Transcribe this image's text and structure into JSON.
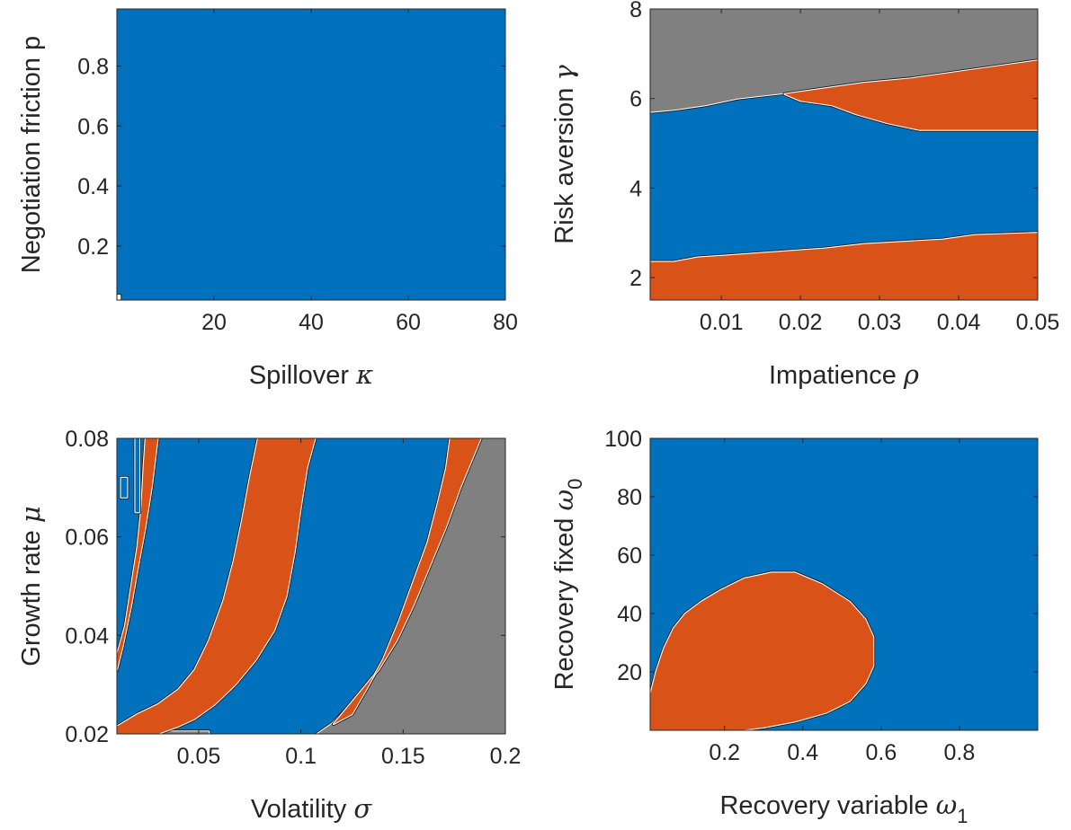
{
  "chart_data": [
    {
      "type": "heatmap",
      "xlabel": "Spillover",
      "xsym": "κ",
      "ylabel": "Negotiation friction p",
      "ysym": "",
      "xlim": [
        0,
        80
      ],
      "ylim": [
        0.02,
        0.99
      ],
      "xticks": [
        20,
        40,
        60,
        80
      ],
      "xticklabels": [
        "20",
        "40",
        "60",
        "80"
      ],
      "yticks": [
        0.2,
        0.4,
        0.6,
        0.8
      ],
      "yticklabels": [
        "0.2",
        "0.4",
        "0.6",
        "0.8"
      ],
      "background": "blue",
      "regions": [
        {
          "color": "white",
          "points": [
            [
              0,
              0.02
            ],
            [
              0.6,
              0.02
            ],
            [
              0.6,
              0.035
            ],
            [
              0,
              0.035
            ]
          ]
        }
      ]
    },
    {
      "type": "heatmap",
      "xlabel": "Impatience",
      "xsym": "ρ",
      "ylabel": "Risk aversion",
      "ysym": "γ",
      "xlim": [
        0.001,
        0.05
      ],
      "ylim": [
        1.5,
        8
      ],
      "xticks": [
        0.01,
        0.02,
        0.03,
        0.04,
        0.05
      ],
      "xticklabels": [
        "0.01",
        "0.02",
        "0.03",
        "0.04",
        "0.05"
      ],
      "yticks": [
        2,
        4,
        6,
        8
      ],
      "yticklabels": [
        "2",
        "4",
        "6",
        "8"
      ],
      "background": "blue",
      "regions": [
        {
          "color": "gray",
          "points": [
            [
              0.001,
              5.7
            ],
            [
              0.004,
              5.75
            ],
            [
              0.008,
              5.85
            ],
            [
              0.012,
              6.0
            ],
            [
              0.017,
              6.1
            ],
            [
              0.022,
              6.2
            ],
            [
              0.028,
              6.35
            ],
            [
              0.034,
              6.45
            ],
            [
              0.04,
              6.6
            ],
            [
              0.046,
              6.75
            ],
            [
              0.05,
              6.85
            ],
            [
              0.05,
              8
            ],
            [
              0.001,
              8
            ]
          ]
        },
        {
          "color": "orange",
          "points": [
            [
              0.018,
              6.1
            ],
            [
              0.022,
              6.2
            ],
            [
              0.028,
              6.35
            ],
            [
              0.034,
              6.45
            ],
            [
              0.04,
              6.6
            ],
            [
              0.046,
              6.75
            ],
            [
              0.05,
              6.85
            ],
            [
              0.05,
              5.3
            ],
            [
              0.045,
              5.3
            ],
            [
              0.04,
              5.3
            ],
            [
              0.035,
              5.3
            ],
            [
              0.031,
              5.45
            ],
            [
              0.027,
              5.65
            ],
            [
              0.024,
              5.85
            ],
            [
              0.02,
              5.95
            ]
          ]
        },
        {
          "color": "orange",
          "points": [
            [
              0.001,
              1.5
            ],
            [
              0.001,
              2.35
            ],
            [
              0.004,
              2.35
            ],
            [
              0.007,
              2.45
            ],
            [
              0.011,
              2.5
            ],
            [
              0.015,
              2.55
            ],
            [
              0.019,
              2.6
            ],
            [
              0.023,
              2.65
            ],
            [
              0.028,
              2.75
            ],
            [
              0.033,
              2.8
            ],
            [
              0.038,
              2.85
            ],
            [
              0.042,
              2.95
            ],
            [
              0.05,
              3.0
            ],
            [
              0.05,
              1.5
            ]
          ]
        }
      ]
    },
    {
      "type": "heatmap",
      "xlabel": "Volatility",
      "xsym": "σ",
      "ylabel": "Growth rate",
      "ysym": "μ",
      "xlim": [
        0.01,
        0.2
      ],
      "ylim": [
        0.02,
        0.08
      ],
      "xticks": [
        0.05,
        0.1,
        0.15,
        0.2
      ],
      "xticklabels": [
        "0.05",
        "0.1",
        "0.15",
        "0.2"
      ],
      "yticks": [
        0.02,
        0.04,
        0.06,
        0.08
      ],
      "yticklabels": [
        "0.02",
        "0.04",
        "0.06",
        "0.08"
      ],
      "background": "blue",
      "regions": [
        {
          "color": "gray",
          "points": [
            [
              0.188,
              0.08
            ],
            [
              0.2,
              0.08
            ],
            [
              0.2,
              0.02
            ],
            [
              0.108,
              0.02
            ],
            [
              0.115,
              0.022
            ],
            [
              0.122,
              0.025
            ],
            [
              0.13,
              0.029
            ],
            [
              0.138,
              0.033
            ],
            [
              0.147,
              0.039
            ],
            [
              0.155,
              0.046
            ],
            [
              0.163,
              0.054
            ],
            [
              0.171,
              0.062
            ],
            [
              0.178,
              0.07
            ],
            [
              0.184,
              0.076
            ]
          ]
        },
        {
          "color": "orange",
          "points": [
            [
              0.173,
              0.08
            ],
            [
              0.188,
              0.08
            ],
            [
              0.184,
              0.076
            ],
            [
              0.178,
              0.07
            ],
            [
              0.171,
              0.062
            ],
            [
              0.163,
              0.054
            ],
            [
              0.155,
              0.046
            ],
            [
              0.147,
              0.039
            ],
            [
              0.138,
              0.033
            ],
            [
              0.13,
              0.029
            ],
            [
              0.122,
              0.025
            ],
            [
              0.116,
              0.022
            ],
            [
              0.125,
              0.024
            ],
            [
              0.132,
              0.029
            ],
            [
              0.14,
              0.035
            ],
            [
              0.148,
              0.043
            ],
            [
              0.155,
              0.051
            ],
            [
              0.162,
              0.059
            ],
            [
              0.167,
              0.067
            ],
            [
              0.171,
              0.074
            ]
          ]
        },
        {
          "color": "gray",
          "points": [
            [
              0.01,
              0.02
            ],
            [
              0.01,
              0.0205
            ],
            [
              0.055,
              0.0205
            ],
            [
              0.055,
              0.02
            ]
          ]
        },
        {
          "color": "orange",
          "points": [
            [
              0.079,
              0.08
            ],
            [
              0.107,
              0.08
            ],
            [
              0.103,
              0.074
            ],
            [
              0.1,
              0.066
            ],
            [
              0.097,
              0.057
            ],
            [
              0.093,
              0.048
            ],
            [
              0.087,
              0.041
            ],
            [
              0.078,
              0.035
            ],
            [
              0.068,
              0.03
            ],
            [
              0.058,
              0.026
            ],
            [
              0.048,
              0.023
            ],
            [
              0.04,
              0.0215
            ],
            [
              0.03,
              0.02
            ],
            [
              0.01,
              0.02
            ],
            [
              0.01,
              0.0215
            ],
            [
              0.02,
              0.024
            ],
            [
              0.03,
              0.026
            ],
            [
              0.04,
              0.029
            ],
            [
              0.048,
              0.033
            ],
            [
              0.055,
              0.039
            ],
            [
              0.062,
              0.047
            ],
            [
              0.067,
              0.055
            ],
            [
              0.071,
              0.063
            ],
            [
              0.075,
              0.072
            ]
          ]
        },
        {
          "color": "orange",
          "points": [
            [
              0.024,
              0.08
            ],
            [
              0.03,
              0.08
            ],
            [
              0.027,
              0.07
            ],
            [
              0.024,
              0.062
            ],
            [
              0.02,
              0.053
            ],
            [
              0.017,
              0.046
            ],
            [
              0.013,
              0.038
            ],
            [
              0.01,
              0.033
            ],
            [
              0.01,
              0.036
            ],
            [
              0.014,
              0.042
            ],
            [
              0.017,
              0.05
            ],
            [
              0.02,
              0.058
            ],
            [
              0.022,
              0.066
            ],
            [
              0.023,
              0.074
            ]
          ]
        },
        {
          "color": "blue-outline",
          "points": [
            [
              0.012,
              0.068
            ],
            [
              0.015,
              0.068
            ],
            [
              0.015,
              0.072
            ],
            [
              0.012,
              0.072
            ]
          ]
        },
        {
          "color": "blue-outline",
          "points": [
            [
              0.019,
              0.065
            ],
            [
              0.021,
              0.065
            ],
            [
              0.021,
              0.08
            ],
            [
              0.019,
              0.08
            ]
          ]
        }
      ]
    },
    {
      "type": "heatmap",
      "xlabel": "Recovery variable",
      "xsym": "ω",
      "xsub": "1",
      "ylabel": "Recovery fixed",
      "ysym": "ω",
      "ysub": "0",
      "xlim": [
        0.01,
        1
      ],
      "ylim": [
        0,
        100
      ],
      "xticks": [
        0.2,
        0.4,
        0.6,
        0.8
      ],
      "xticklabels": [
        "0.2",
        "0.4",
        "0.6",
        "0.8"
      ],
      "yticks": [
        20,
        40,
        60,
        80,
        100
      ],
      "yticklabels": [
        "20",
        "40",
        "60",
        "80",
        "100"
      ],
      "background": "blue",
      "regions": [
        {
          "color": "orange",
          "points": [
            [
              0.01,
              0
            ],
            [
              0.01,
              12
            ],
            [
              0.025,
              20
            ],
            [
              0.045,
              28
            ],
            [
              0.07,
              35
            ],
            [
              0.1,
              40
            ],
            [
              0.14,
              44
            ],
            [
              0.19,
              48
            ],
            [
              0.25,
              52
            ],
            [
              0.32,
              54
            ],
            [
              0.38,
              54
            ],
            [
              0.45,
              50
            ],
            [
              0.52,
              44
            ],
            [
              0.56,
              38
            ],
            [
              0.58,
              32
            ],
            [
              0.58,
              22
            ],
            [
              0.56,
              16
            ],
            [
              0.52,
              10
            ],
            [
              0.46,
              6
            ],
            [
              0.38,
              3
            ],
            [
              0.3,
              1
            ],
            [
              0.24,
              0
            ]
          ]
        }
      ]
    }
  ],
  "colors": {
    "blue": "#0072bd",
    "orange": "#d95319",
    "gray": "#808080",
    "white": "#ffffff",
    "axis": "#262626"
  }
}
